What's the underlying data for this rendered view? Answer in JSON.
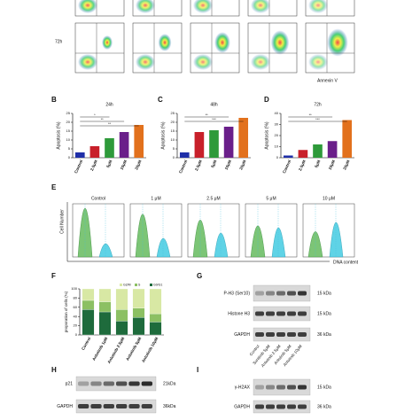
{
  "flow": {
    "row_label": "72h",
    "x_axis": "Annexin V"
  },
  "labels": {
    "B": "B",
    "C": "C",
    "D": "D",
    "E": "E",
    "F": "F",
    "G": "G",
    "H": "H",
    "I": "I"
  },
  "apoptosis": [
    {
      "type": "bar",
      "title": "24h",
      "ylabel": "Apoptosis (%)",
      "categories": [
        "Control",
        "2.5μM",
        "5μM",
        "10μM",
        "20μM"
      ],
      "values": [
        3,
        6.5,
        11,
        14.5,
        18.5
      ],
      "colors": [
        "#1f2fa8",
        "#c8202a",
        "#2e9a3a",
        "#6a1f8a",
        "#e2711d"
      ],
      "ylim": [
        0,
        25
      ],
      "yticks": [
        0,
        5,
        10,
        15,
        20,
        25
      ],
      "annotations": [
        "**",
        "**",
        "*"
      ]
    },
    {
      "type": "bar",
      "title": "48h",
      "ylabel": "Apoptosis (%)",
      "categories": [
        "Control",
        "2.5μM",
        "5μM",
        "10μM",
        "20μM"
      ],
      "values": [
        3,
        14.5,
        15.5,
        17.5,
        22.5
      ],
      "colors": [
        "#1f2fa8",
        "#c8202a",
        "#2e9a3a",
        "#6a1f8a",
        "#e2711d"
      ],
      "ylim": [
        0,
        25
      ],
      "yticks": [
        0,
        5,
        10,
        15,
        20,
        25
      ],
      "annotations": [
        "***",
        "**"
      ]
    },
    {
      "type": "bar",
      "title": "72h",
      "ylabel": "Apoptosis (%)",
      "categories": [
        "Control",
        "2.5μM",
        "5μM",
        "10μM",
        "20μM"
      ],
      "values": [
        2,
        7,
        12,
        15,
        34
      ],
      "colors": [
        "#1f2fa8",
        "#c8202a",
        "#2e9a3a",
        "#6a1f8a",
        "#e2711d"
      ],
      "ylim": [
        0,
        40
      ],
      "yticks": [
        0,
        10,
        20,
        30,
        40
      ],
      "annotations": [
        "***",
        "**"
      ]
    }
  ],
  "histograms": {
    "titles": [
      "Control",
      "1 μM",
      "2.5 μM",
      "5 μM",
      "10 μM"
    ],
    "ylabel": "Cell Number",
    "xlabel": "DNA content"
  },
  "cell_cycle": {
    "type": "stacked-bar",
    "ylabel": "proporation of cells (%)",
    "categories": [
      "Control",
      "Anlotinib 1μM",
      "Anlotinib 2.5μM",
      "Anlotinib 5μM",
      "Anlotinib 10μM"
    ],
    "ylim": [
      0,
      100
    ],
    "yticks": [
      0,
      20,
      40,
      60,
      80,
      100
    ],
    "series": [
      {
        "name": "G0/G1",
        "color": "#1e6b3c",
        "values": [
          55,
          50,
          30,
          38,
          28
        ]
      },
      {
        "name": "S",
        "color": "#8cc063",
        "values": [
          20,
          22,
          25,
          20,
          18
        ]
      },
      {
        "name": "G2/M",
        "color": "#d8e8a4",
        "values": [
          25,
          28,
          45,
          42,
          54
        ]
      }
    ]
  },
  "blot_G": {
    "rows": [
      {
        "label": "P-H3 (Ser10)",
        "kda": "15 kDa"
      },
      {
        "label": "Histone H3",
        "kda": "15 kDa"
      },
      {
        "label": "GAPDH",
        "kda": "36 kDa"
      }
    ],
    "lanes": [
      "Control",
      "Sunitinib 5μM",
      "Anlotinib 2.5μM",
      "Anlotinib 5μM",
      "Anlotinib 10μM"
    ]
  },
  "blot_H": {
    "rows": [
      {
        "label": "p21",
        "kda": "21kDa"
      },
      {
        "label": "GAPDH",
        "kda": "36kDa"
      }
    ]
  },
  "blot_I": {
    "rows": [
      {
        "label": "γ-H2AX",
        "kda": "15 kDa"
      },
      {
        "label": "GAPDH",
        "kda": "36 kDa"
      }
    ]
  }
}
